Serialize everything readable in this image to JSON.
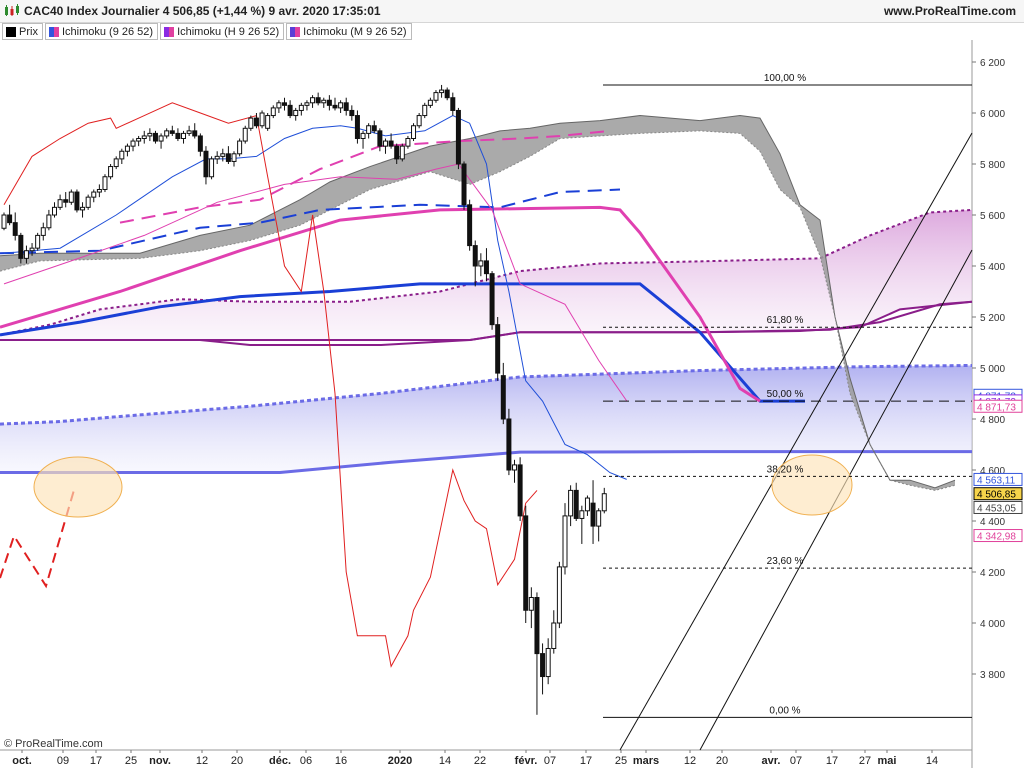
{
  "header": {
    "title": "CAC40 Index Journalier 4 506,85 (+1,44 %) 9 avr. 2020 17:35:01",
    "site": "www.ProRealTime.com"
  },
  "legend": [
    {
      "label": "Prix",
      "color": "#000000"
    },
    {
      "label": "Ichimoku (9 26 52)",
      "color": "#3355dd"
    },
    {
      "label": "Ichimoku (H 9 26 52)",
      "color": "#8a2be2"
    },
    {
      "label": "Ichimoku (M 9 26 52)",
      "color": "#5a3fd6"
    }
  ],
  "copyright": "© ProRealTime.com",
  "chart_data": {
    "type": "candlestick",
    "ylim": [
      3620,
      6280
    ],
    "y_ticks": [
      {
        "value": 6200,
        "label": "6 200"
      },
      {
        "value": 6000,
        "label": "6 000"
      },
      {
        "value": 5800,
        "label": "5 800"
      },
      {
        "value": 5600,
        "label": "5 600"
      },
      {
        "value": 5400,
        "label": "5 400"
      },
      {
        "value": 5200,
        "label": "5 200"
      },
      {
        "value": 5000,
        "label": "5 000"
      },
      {
        "value": 4800,
        "label": "4 800"
      },
      {
        "value": 4600,
        "label": "4 600"
      },
      {
        "value": 4400,
        "label": "4 400"
      },
      {
        "value": 4200,
        "label": "4 200"
      },
      {
        "value": 4000,
        "label": "4 000"
      },
      {
        "value": 3800,
        "label": "3 800"
      }
    ],
    "x_ticks": [
      {
        "label": "oct.",
        "bold": true
      },
      {
        "label": "09"
      },
      {
        "label": "17"
      },
      {
        "label": "25"
      },
      {
        "label": "nov.",
        "bold": true
      },
      {
        "label": "12"
      },
      {
        "label": "20"
      },
      {
        "label": "déc.",
        "bold": true
      },
      {
        "label": "06"
      },
      {
        "label": "16"
      },
      {
        "label": "2020",
        "bold": true
      },
      {
        "label": "14"
      },
      {
        "label": "22"
      },
      {
        "label": "févr.",
        "bold": true
      },
      {
        "label": "07"
      },
      {
        "label": "17"
      },
      {
        "label": "25"
      },
      {
        "label": "mars",
        "bold": true
      },
      {
        "label": "12"
      },
      {
        "label": "20"
      },
      {
        "label": "avr.",
        "bold": true
      },
      {
        "label": "07"
      },
      {
        "label": "17"
      },
      {
        "label": "27"
      },
      {
        "label": "mai",
        "bold": true
      },
      {
        "label": "14"
      }
    ],
    "fibonacci": [
      {
        "label": "100,00 %",
        "value": 6110
      },
      {
        "label": "61,80 %",
        "value": 5160
      },
      {
        "label": "50,00 %",
        "value": 4870
      },
      {
        "label": "38,20 %",
        "value": 4575
      },
      {
        "label": "23,60 %",
        "value": 4215
      },
      {
        "label": "0,00 %",
        "value": 3630
      }
    ],
    "price_tags": [
      {
        "label": "4 871,73",
        "value": 4893,
        "color": "#3355dd"
      },
      {
        "label": "4 871,73",
        "value": 4871,
        "color": "#8a2be2"
      },
      {
        "label": "4 871,73",
        "value": 4850,
        "color": "#e0409a"
      },
      {
        "label": "4 563,11",
        "value": 4563,
        "color": "#3355dd"
      },
      {
        "label": "4 506,85",
        "value": 4507,
        "color": "#000000",
        "fill": "#f7d44a"
      },
      {
        "label": "4 453,05",
        "value": 4453,
        "color": "#444444"
      },
      {
        "label": "4 342,98",
        "value": 4343,
        "color": "#e0409a"
      }
    ],
    "candles": [
      [
        5548,
        5610,
        5540,
        5600
      ],
      [
        5600,
        5640,
        5560,
        5570
      ],
      [
        5570,
        5610,
        5500,
        5520
      ],
      [
        5520,
        5530,
        5410,
        5430
      ],
      [
        5430,
        5480,
        5410,
        5460
      ],
      [
        5460,
        5490,
        5440,
        5470
      ],
      [
        5470,
        5530,
        5460,
        5520
      ],
      [
        5520,
        5570,
        5500,
        5550
      ],
      [
        5550,
        5620,
        5540,
        5600
      ],
      [
        5600,
        5650,
        5590,
        5630
      ],
      [
        5630,
        5680,
        5620,
        5660
      ],
      [
        5660,
        5690,
        5630,
        5650
      ],
      [
        5650,
        5700,
        5640,
        5690
      ],
      [
        5690,
        5700,
        5610,
        5620
      ],
      [
        5620,
        5650,
        5590,
        5630
      ],
      [
        5630,
        5680,
        5620,
        5670
      ],
      [
        5670,
        5700,
        5650,
        5690
      ],
      [
        5690,
        5720,
        5670,
        5700
      ],
      [
        5700,
        5760,
        5690,
        5750
      ],
      [
        5750,
        5800,
        5740,
        5790
      ],
      [
        5790,
        5830,
        5780,
        5820
      ],
      [
        5820,
        5860,
        5800,
        5850
      ],
      [
        5850,
        5880,
        5830,
        5870
      ],
      [
        5870,
        5900,
        5850,
        5890
      ],
      [
        5890,
        5910,
        5870,
        5900
      ],
      [
        5900,
        5930,
        5880,
        5910
      ],
      [
        5910,
        5940,
        5890,
        5920
      ],
      [
        5920,
        5930,
        5880,
        5890
      ],
      [
        5890,
        5920,
        5860,
        5910
      ],
      [
        5910,
        5940,
        5900,
        5930
      ],
      [
        5930,
        5950,
        5910,
        5920
      ],
      [
        5920,
        5940,
        5890,
        5900
      ],
      [
        5900,
        5930,
        5880,
        5920
      ],
      [
        5920,
        5950,
        5910,
        5930
      ],
      [
        5930,
        5960,
        5900,
        5910
      ],
      [
        5910,
        5920,
        5830,
        5850
      ],
      [
        5850,
        5870,
        5720,
        5750
      ],
      [
        5750,
        5830,
        5740,
        5820
      ],
      [
        5820,
        5850,
        5800,
        5830
      ],
      [
        5830,
        5860,
        5810,
        5840
      ],
      [
        5840,
        5870,
        5800,
        5810
      ],
      [
        5810,
        5850,
        5790,
        5840
      ],
      [
        5840,
        5900,
        5830,
        5890
      ],
      [
        5890,
        5950,
        5880,
        5940
      ],
      [
        5940,
        5990,
        5930,
        5980
      ],
      [
        5980,
        6000,
        5940,
        5950
      ],
      [
        5950,
        6010,
        5940,
        6000
      ],
      [
        5940,
        6000,
        5930,
        5990
      ],
      [
        5990,
        6030,
        5980,
        6020
      ],
      [
        6020,
        6050,
        6000,
        6040
      ],
      [
        6040,
        6060,
        6010,
        6030
      ],
      [
        6030,
        6050,
        5980,
        5990
      ],
      [
        5990,
        6020,
        5970,
        6010
      ],
      [
        6010,
        6040,
        5990,
        6030
      ],
      [
        6030,
        6050,
        6010,
        6040
      ],
      [
        6040,
        6070,
        6020,
        6060
      ],
      [
        6060,
        6080,
        6030,
        6040
      ],
      [
        6040,
        6060,
        6020,
        6050
      ],
      [
        6050,
        6070,
        6010,
        6030
      ],
      [
        6030,
        6060,
        6010,
        6020
      ],
      [
        6020,
        6050,
        6000,
        6040
      ],
      [
        6040,
        6060,
        5990,
        6010
      ],
      [
        6010,
        6030,
        5970,
        5990
      ],
      [
        5990,
        6010,
        5880,
        5900
      ],
      [
        5900,
        5930,
        5860,
        5920
      ],
      [
        5920,
        5960,
        5900,
        5950
      ],
      [
        5950,
        5970,
        5920,
        5930
      ],
      [
        5930,
        5940,
        5850,
        5870
      ],
      [
        5870,
        5900,
        5840,
        5890
      ],
      [
        5890,
        5920,
        5860,
        5870
      ],
      [
        5870,
        5880,
        5800,
        5820
      ],
      [
        5820,
        5880,
        5810,
        5870
      ],
      [
        5870,
        5910,
        5860,
        5900
      ],
      [
        5900,
        5960,
        5890,
        5950
      ],
      [
        5950,
        6000,
        5940,
        5990
      ],
      [
        5990,
        6040,
        5980,
        6030
      ],
      [
        6030,
        6060,
        6020,
        6050
      ],
      [
        6050,
        6090,
        6040,
        6080
      ],
      [
        6080,
        6110,
        6060,
        6090
      ],
      [
        6090,
        6100,
        6050,
        6060
      ],
      [
        6060,
        6080,
        5990,
        6010
      ],
      [
        6010,
        6020,
        5780,
        5800
      ],
      [
        5800,
        5810,
        5620,
        5640
      ],
      [
        5640,
        5660,
        5460,
        5480
      ],
      [
        5480,
        5500,
        5320,
        5400
      ],
      [
        5400,
        5450,
        5360,
        5420
      ],
      [
        5420,
        5470,
        5340,
        5370
      ],
      [
        5370,
        5380,
        5150,
        5170
      ],
      [
        5170,
        5200,
        4950,
        4980
      ],
      [
        4970,
        5020,
        4780,
        4800
      ],
      [
        4800,
        4840,
        4580,
        4600
      ],
      [
        4600,
        4640,
        4550,
        4620
      ],
      [
        4620,
        4650,
        4400,
        4420
      ],
      [
        4420,
        4460,
        4000,
        4050
      ],
      [
        4050,
        4140,
        3980,
        4100
      ],
      [
        4100,
        4120,
        3640,
        3880
      ],
      [
        3880,
        3920,
        3720,
        3790
      ],
      [
        3790,
        3940,
        3760,
        3900
      ],
      [
        3900,
        4050,
        3880,
        4000
      ],
      [
        4000,
        4240,
        3980,
        4220
      ],
      [
        4220,
        4470,
        4190,
        4420
      ],
      [
        4420,
        4540,
        4380,
        4520
      ],
      [
        4520,
        4550,
        4400,
        4410
      ],
      [
        4410,
        4460,
        4310,
        4440
      ],
      [
        4440,
        4500,
        4420,
        4490
      ],
      [
        4470,
        4560,
        4310,
        4380
      ],
      [
        4380,
        4450,
        4320,
        4440
      ],
      [
        4440,
        4530,
        4430,
        4507
      ]
    ],
    "tenkan": [
      [
        0,
        5450
      ],
      [
        10,
        5470
      ],
      [
        20,
        5600
      ],
      [
        30,
        5750
      ],
      [
        36,
        5820
      ],
      [
        40,
        5820
      ],
      [
        45,
        5830
      ],
      [
        50,
        5900
      ],
      [
        55,
        5940
      ],
      [
        60,
        5950
      ],
      [
        63,
        5940
      ],
      [
        68,
        5910
      ],
      [
        75,
        5930
      ],
      [
        80,
        5990
      ],
      [
        83,
        5960
      ],
      [
        86,
        5800
      ],
      [
        88,
        5500
      ],
      [
        90,
        5300
      ],
      [
        93,
        4950
      ],
      [
        96,
        4870
      ],
      [
        100,
        4700
      ],
      [
        104,
        4660
      ],
      [
        108,
        4590
      ],
      [
        111,
        4563
      ]
    ],
    "kijun": [
      [
        0,
        5330
      ],
      [
        12,
        5420
      ],
      [
        25,
        5520
      ],
      [
        38,
        5650
      ],
      [
        50,
        5720
      ],
      [
        60,
        5750
      ],
      [
        70,
        5740
      ],
      [
        77,
        5780
      ],
      [
        81,
        5800
      ],
      [
        87,
        5620
      ],
      [
        92,
        5330
      ],
      [
        100,
        5250
      ],
      [
        106,
        5030
      ],
      [
        111,
        4871
      ]
    ],
    "chikou": [
      [
        0,
        5640
      ],
      [
        5,
        5830
      ],
      [
        10,
        5900
      ],
      [
        15,
        5960
      ],
      [
        19,
        5980
      ],
      [
        20,
        5940
      ],
      [
        25,
        5990
      ],
      [
        30,
        6040
      ],
      [
        35,
        6000
      ],
      [
        40,
        5960
      ],
      [
        45,
        5990
      ],
      [
        47,
        5750
      ],
      [
        50,
        5400
      ],
      [
        53,
        5300
      ],
      [
        55,
        5600
      ],
      [
        57,
        5300
      ],
      [
        59,
        4900
      ],
      [
        61,
        4200
      ],
      [
        63,
        3950
      ],
      [
        65,
        3950
      ],
      [
        68,
        3950
      ],
      [
        69,
        3830
      ],
      [
        72,
        3950
      ],
      [
        73,
        4050
      ],
      [
        76,
        4180
      ],
      [
        80,
        4600
      ],
      [
        82,
        4480
      ],
      [
        84,
        4400
      ],
      [
        86,
        4370
      ],
      [
        88,
        4150
      ],
      [
        91,
        4250
      ],
      [
        93,
        4470
      ],
      [
        95,
        4520
      ]
    ],
    "kumo_visible": true,
    "hourly_lines": {
      "kumo_top": [
        5340,
        5380,
        5410,
        5430,
        5460,
        5520,
        5580,
        5600,
        5620,
        5650
      ],
      "kumo_bottom": [
        5200,
        5210,
        5240,
        5250,
        5280,
        5300,
        5320,
        5340,
        5360,
        5380
      ],
      "tenkan": [
        5120,
        5150,
        5160,
        5200,
        5240,
        5280,
        5320,
        5330,
        5200,
        5270
      ]
    }
  }
}
